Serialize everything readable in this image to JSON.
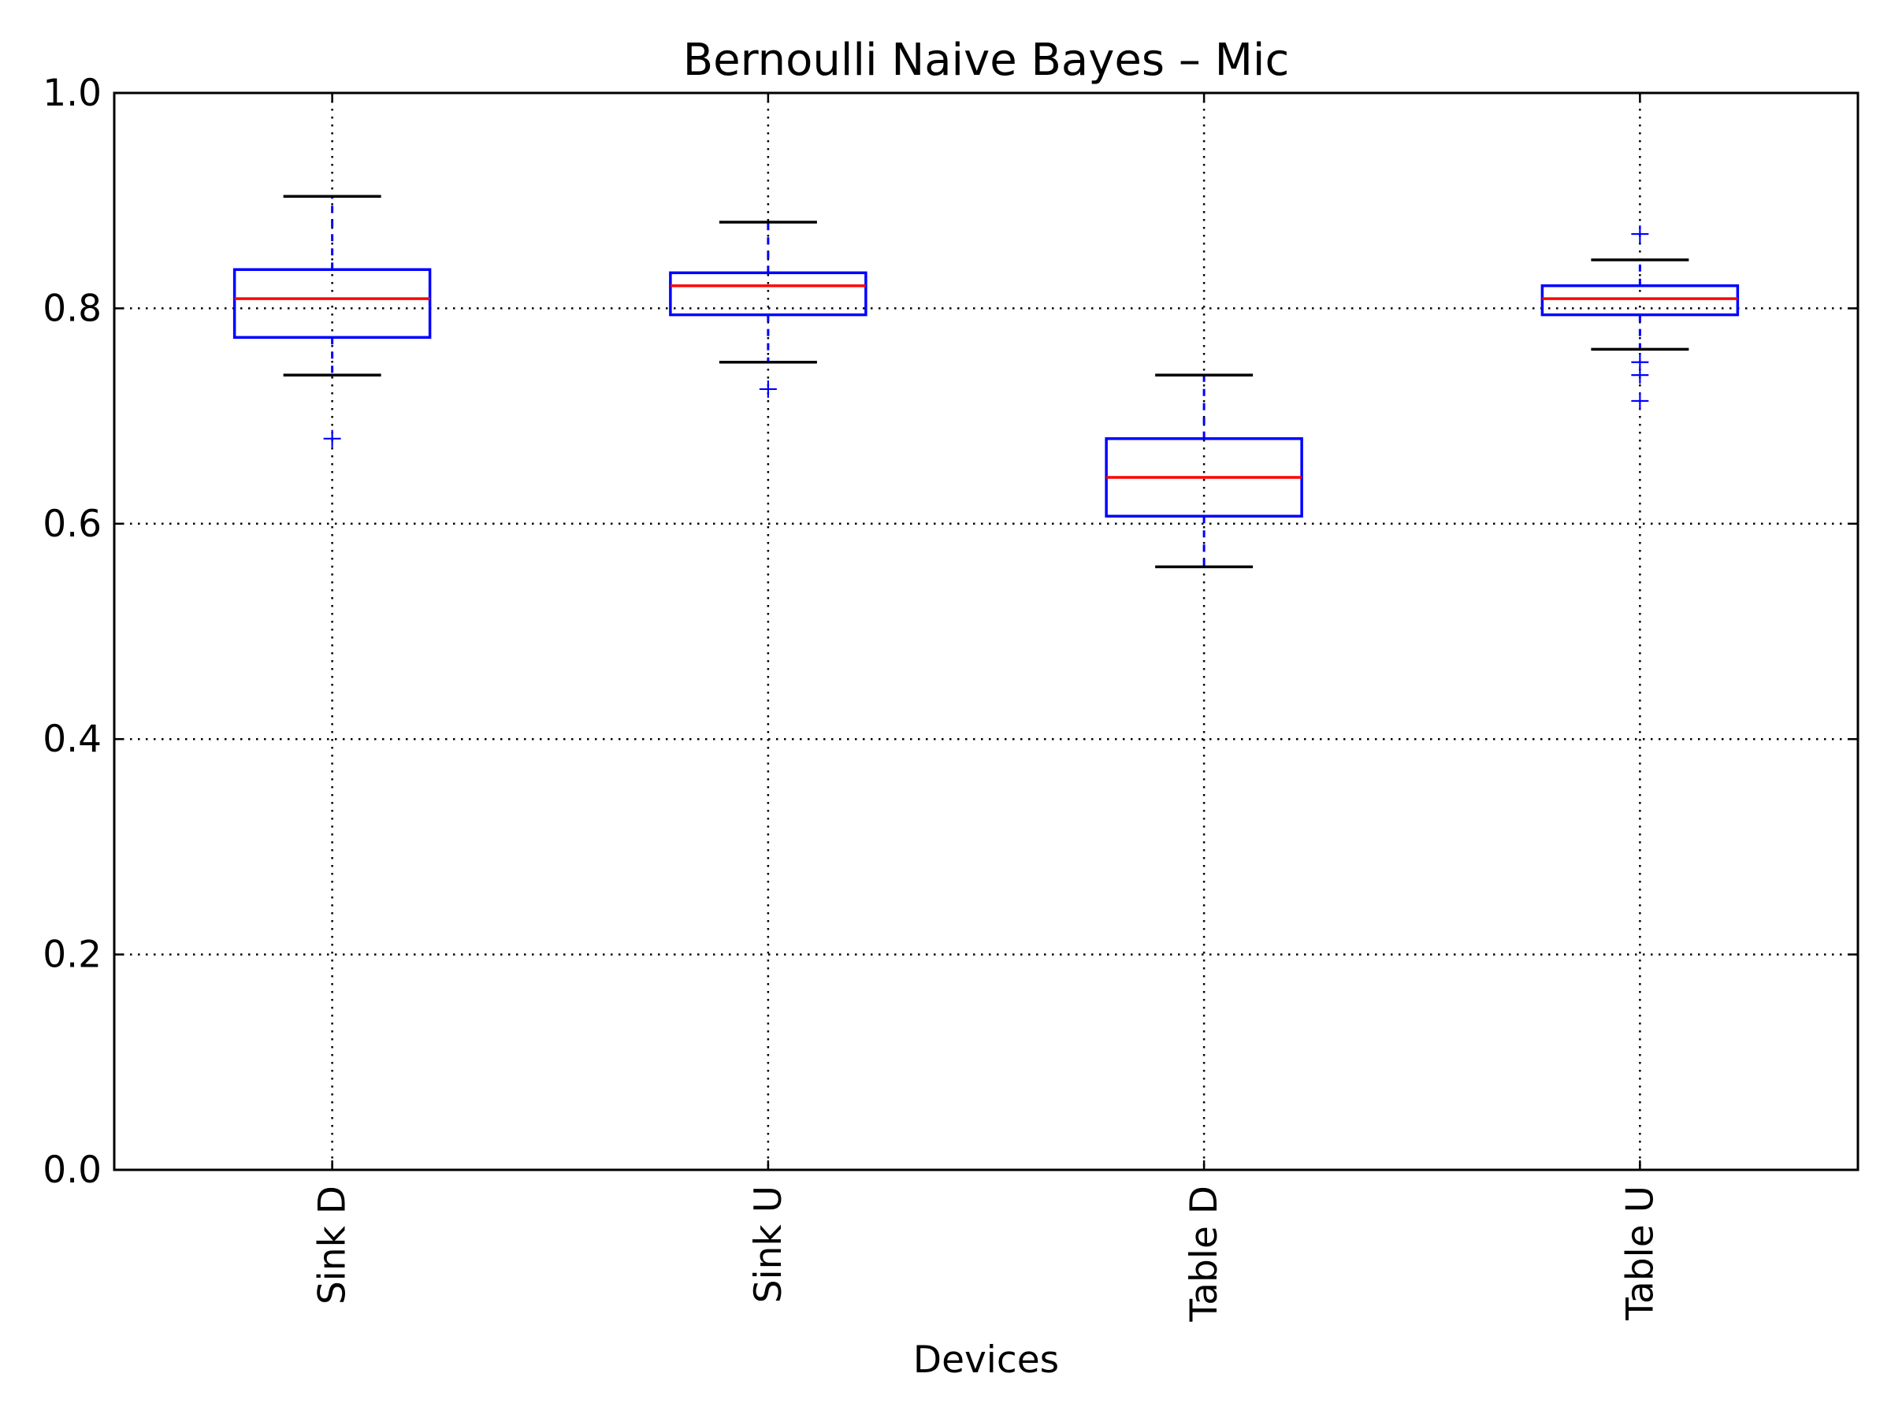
{
  "chart_data": {
    "type": "boxplot",
    "title": "Bernoulli Naive Bayes – Mic",
    "xlabel": "Devices",
    "ylabel": "",
    "ylim": [
      0.0,
      1.0
    ],
    "yticks": [
      "0.0",
      "0.2",
      "0.4",
      "0.6",
      "0.8",
      "1.0"
    ],
    "categories": [
      "Sink D",
      "Sink U",
      "Table D",
      "Table U"
    ],
    "grid": true,
    "boxes": [
      {
        "label": "Sink D",
        "whisker_low": 0.738,
        "q1": 0.773,
        "median": 0.809,
        "q3": 0.836,
        "whisker_high": 0.904,
        "outliers": [
          0.679
        ]
      },
      {
        "label": "Sink U",
        "whisker_low": 0.75,
        "q1": 0.794,
        "median": 0.821,
        "q3": 0.833,
        "whisker_high": 0.88,
        "outliers": [
          0.725
        ]
      },
      {
        "label": "Table D",
        "whisker_low": 0.56,
        "q1": 0.607,
        "median": 0.643,
        "q3": 0.679,
        "whisker_high": 0.738,
        "outliers": []
      },
      {
        "label": "Table U",
        "whisker_low": 0.762,
        "q1": 0.794,
        "median": 0.809,
        "q3": 0.821,
        "whisker_high": 0.845,
        "outliers": [
          0.869,
          0.75,
          0.738,
          0.714
        ]
      }
    ],
    "colors": {
      "box": "#0000ff",
      "median": "#ff0000",
      "cap": "#000000",
      "whisker": "#0000ff",
      "flier": "#0000ff",
      "grid": "#000000"
    }
  }
}
